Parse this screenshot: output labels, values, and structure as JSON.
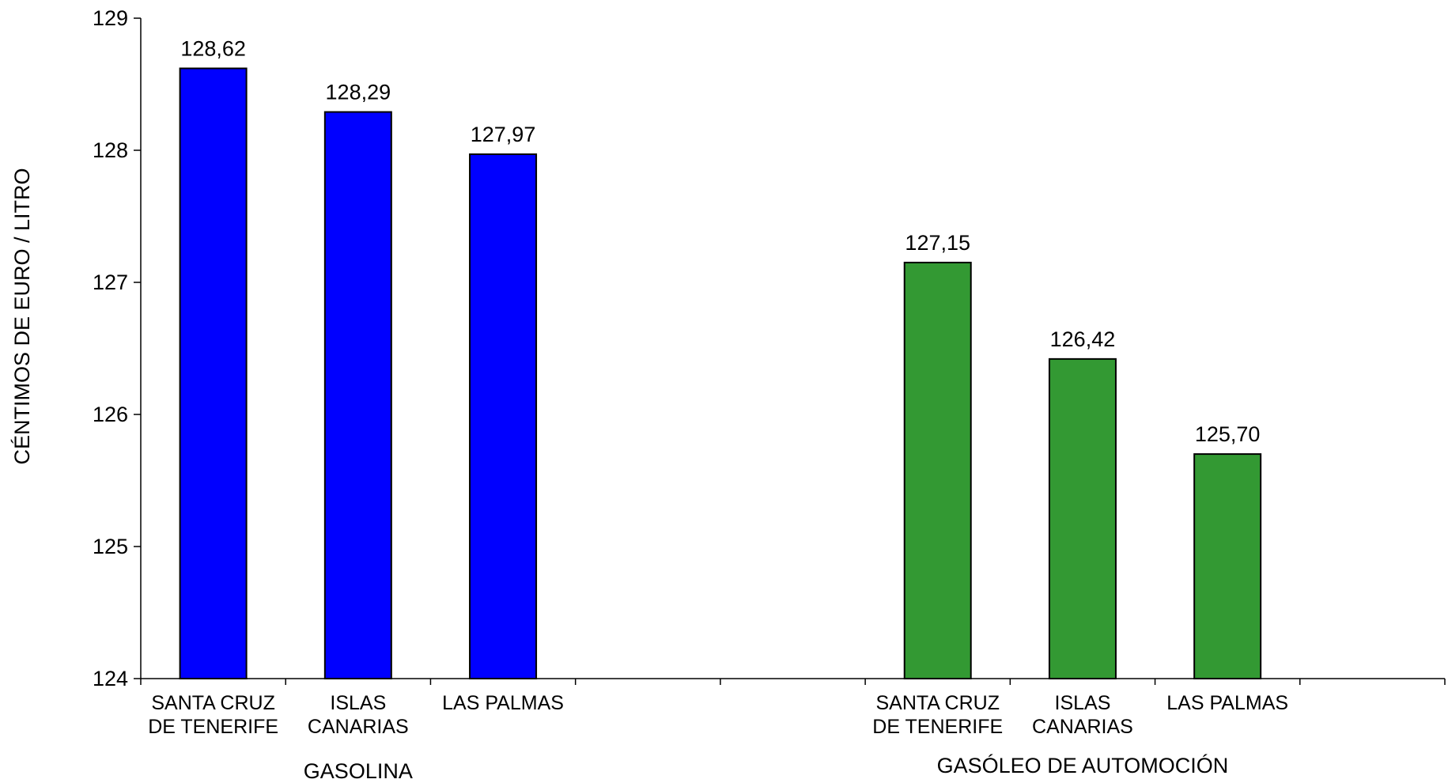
{
  "chart_data": {
    "type": "bar",
    "ylabel": "CÉNTIMOS DE EURO / LITRO",
    "ylim": [
      124,
      129
    ],
    "yticks": [
      "124",
      "125",
      "126",
      "127",
      "128",
      "129"
    ],
    "grid": false,
    "groups": [
      {
        "name": "GASOLINA",
        "color": "#0000ff",
        "bars": [
          {
            "category": [
              "SANTA CRUZ",
              "DE TENERIFE"
            ],
            "value": 128.62,
            "label": "128,62"
          },
          {
            "category": [
              "ISLAS",
              "CANARIAS"
            ],
            "value": 128.29,
            "label": "128,29"
          },
          {
            "category": [
              "LAS PALMAS"
            ],
            "value": 127.97,
            "label": "127,97"
          }
        ]
      },
      {
        "name": "GASÓLEO DE AUTOMOCIÓN",
        "color": "#339933",
        "bars": [
          {
            "category": [
              "SANTA CRUZ",
              "DE TENERIFE"
            ],
            "value": 127.15,
            "label": "127,15"
          },
          {
            "category": [
              "ISLAS",
              "CANARIAS"
            ],
            "value": 126.42,
            "label": "126,42"
          },
          {
            "category": [
              "LAS PALMAS"
            ],
            "value": 125.7,
            "label": "125,70"
          }
        ]
      }
    ]
  }
}
